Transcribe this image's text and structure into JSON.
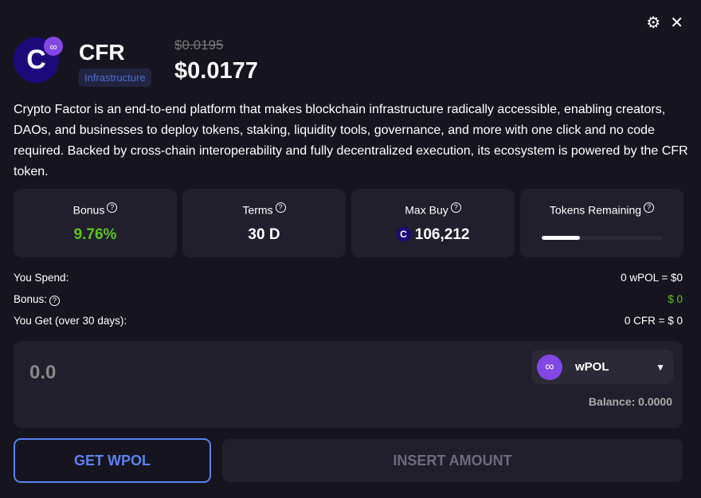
{
  "header": {
    "symbol": "CFR",
    "category": "Infrastructure",
    "old_price": "$0.0195",
    "price": "$0.0177"
  },
  "description": "Crypto Factor is an end-to-end platform that makes blockchain infrastructure radically accessible, enabling creators, DAOs, and businesses to deploy tokens, staking, liquidity tools, governance, and more with one click and no code required. Backed by cross-chain interoperability and fully decentralized execution, its ecosystem is powered by the CFR token.",
  "stats": {
    "bonus": {
      "label": "Bonus",
      "value": "9.76%"
    },
    "terms": {
      "label": "Terms",
      "value": "30 D"
    },
    "max_buy": {
      "label": "Max Buy",
      "value": "106,212"
    },
    "tokens_remaining": {
      "label": "Tokens Remaining",
      "progress_percent": 32
    }
  },
  "summary": [
    {
      "label": "You Spend:",
      "value": "0 wPOL = $0"
    },
    {
      "label": "Bonus:",
      "value": "$ 0"
    },
    {
      "label": "You Get (over 30 days):",
      "value": "0 CFR = $ 0"
    }
  ],
  "input": {
    "amount": "0.0",
    "token": "wPOL",
    "balance": "Balance: 0.0000"
  },
  "buttons": {
    "get": "GET WPOL",
    "submit": "INSERT AMOUNT"
  },
  "colors": {
    "accent": "#5b82f0",
    "green": "#5cc21e",
    "polygon": "#8247e5",
    "logo": "#1c0a7a"
  }
}
